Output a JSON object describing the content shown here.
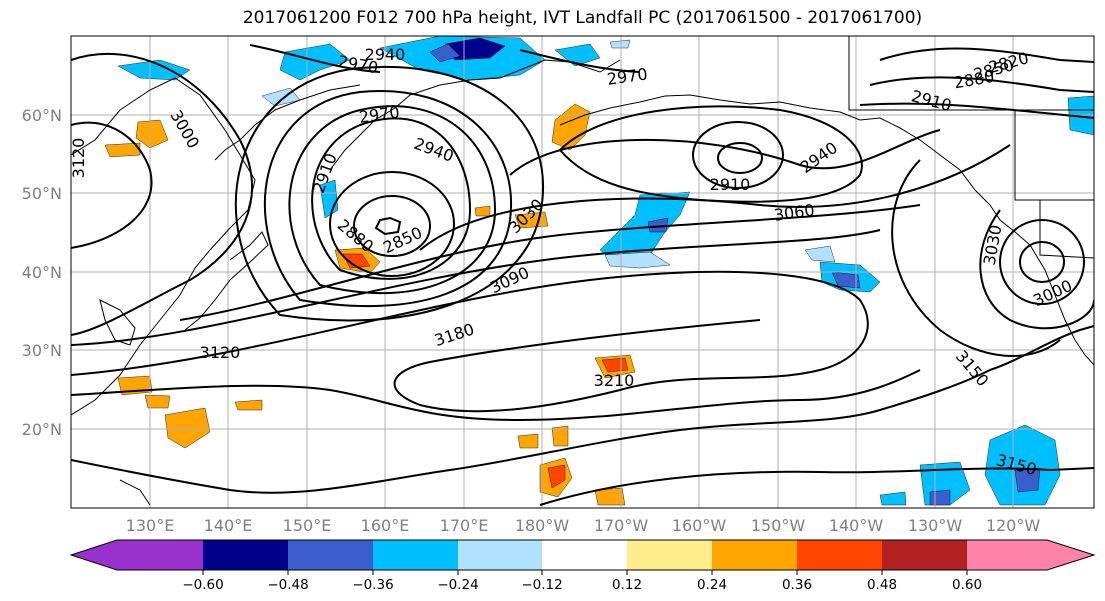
{
  "title": "2017061200 F012 700 hPa height, IVT Landfall PC (2017061500 - 2017061700)",
  "map": {
    "lat_labels": [
      "60°N",
      "50°N",
      "40°N",
      "30°N",
      "20°N"
    ],
    "lon_labels": [
      "130°E",
      "140°E",
      "150°E",
      "160°E",
      "170°E",
      "180°W",
      "170°W",
      "160°W",
      "150°W",
      "140°W",
      "130°W",
      "120°W"
    ],
    "contour_labels": [
      {
        "text": "2940"
      },
      {
        "text": "2970"
      },
      {
        "text": "2970"
      },
      {
        "text": "2970"
      },
      {
        "text": "2820"
      },
      {
        "text": "2850"
      },
      {
        "text": "2880"
      },
      {
        "text": "2910"
      },
      {
        "text": "3000"
      },
      {
        "text": "3120"
      },
      {
        "text": "2940"
      },
      {
        "text": "2910"
      },
      {
        "text": "2880"
      },
      {
        "text": "2850"
      },
      {
        "text": "3030"
      },
      {
        "text": "2910"
      },
      {
        "text": "2940"
      },
      {
        "text": "3060"
      },
      {
        "text": "3090"
      },
      {
        "text": "3180"
      },
      {
        "text": "3120"
      },
      {
        "text": "3210"
      },
      {
        "text": "3030"
      },
      {
        "text": "3000"
      },
      {
        "text": "3150"
      },
      {
        "text": "3150"
      }
    ]
  },
  "colorbar": {
    "ticks": [
      "−0.60",
      "−0.48",
      "−0.36",
      "−0.24",
      "−0.12",
      "0.12",
      "0.24",
      "0.36",
      "0.48",
      "0.60"
    ],
    "colors": [
      "#9932cc",
      "#00008b",
      "#3a5fcd",
      "#00bfff",
      "#b0e2ff",
      "#ffffff",
      "#ffec8b",
      "#ffa500",
      "#ff4500",
      "#b22222",
      "#ff82ab"
    ]
  }
}
